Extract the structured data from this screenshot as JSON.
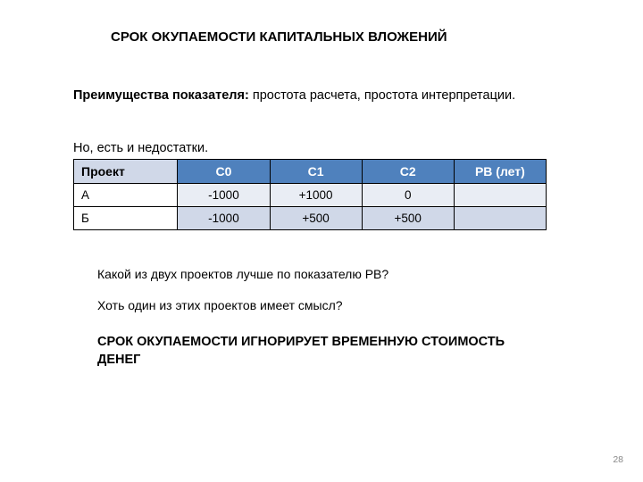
{
  "title": "СРОК ОКУПАЕМОСТИ КАПИТАЛЬНЫХ ВЛОЖЕНИЙ",
  "advantages_label": "Преимущества показателя:",
  "advantages_text": " простота расчета, простота интерпретации.",
  "disadvantages_text": "Но, есть и недостатки.",
  "table": {
    "headers": [
      "Проект",
      "C0",
      "C1",
      "C2",
      "PB (лет)"
    ],
    "rows": [
      [
        "А",
        "-1000",
        "+1000",
        "0",
        ""
      ],
      [
        "Б",
        "-1000",
        "+500",
        "+500",
        ""
      ]
    ],
    "header_bg": "#4f81bd",
    "header_first_bg": "#d0d8e8",
    "row_even_bg": "#e9edf4",
    "row_odd_bg": "#d0d8e8",
    "border_color": "#000000"
  },
  "question1": "Какой из двух проектов лучше по показателю PB?",
  "question2": "Хоть один из этих проектов имеет смысл?",
  "conclusion": "СРОК ОКУПАЕМОСТИ ИГНОРИРУЕТ ВРЕМЕННУЮ СТОИМОСТЬ ДЕНЕГ",
  "page_number": "28"
}
